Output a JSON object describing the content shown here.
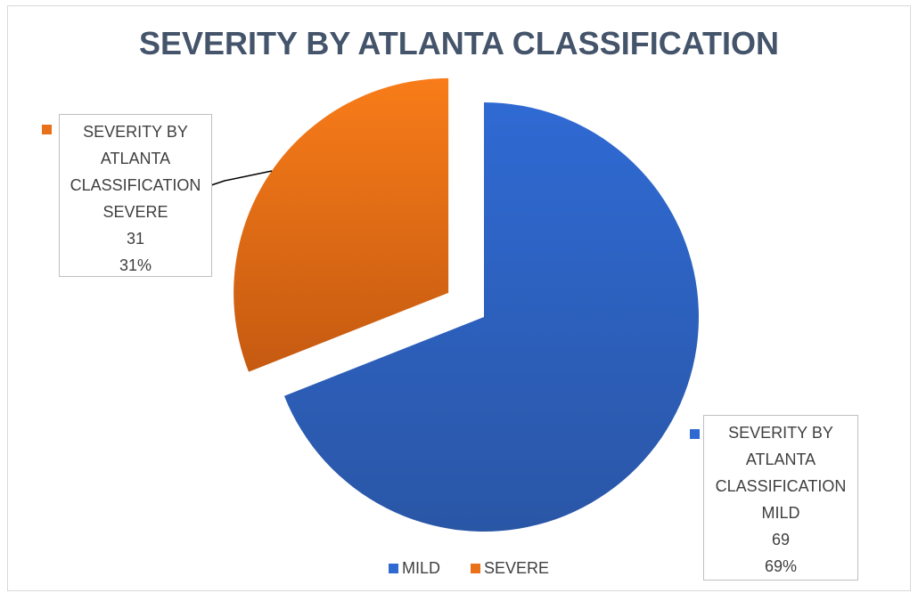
{
  "chart_data": {
    "type": "pie",
    "title": "SEVERITY BY ATLANTA CLASSIFICATION",
    "categories": [
      "MILD",
      "SEVERE"
    ],
    "series": [
      {
        "name": "SEVERITY BY ATLANTA CLASSIFICATION",
        "values": [
          69,
          31
        ],
        "percent_labels": [
          "69%",
          "31%"
        ]
      }
    ],
    "colors": [
      "#2f6ad3",
      "#e8711a"
    ],
    "explode": [
      0,
      0.2
    ],
    "legend": "bottom"
  }
}
